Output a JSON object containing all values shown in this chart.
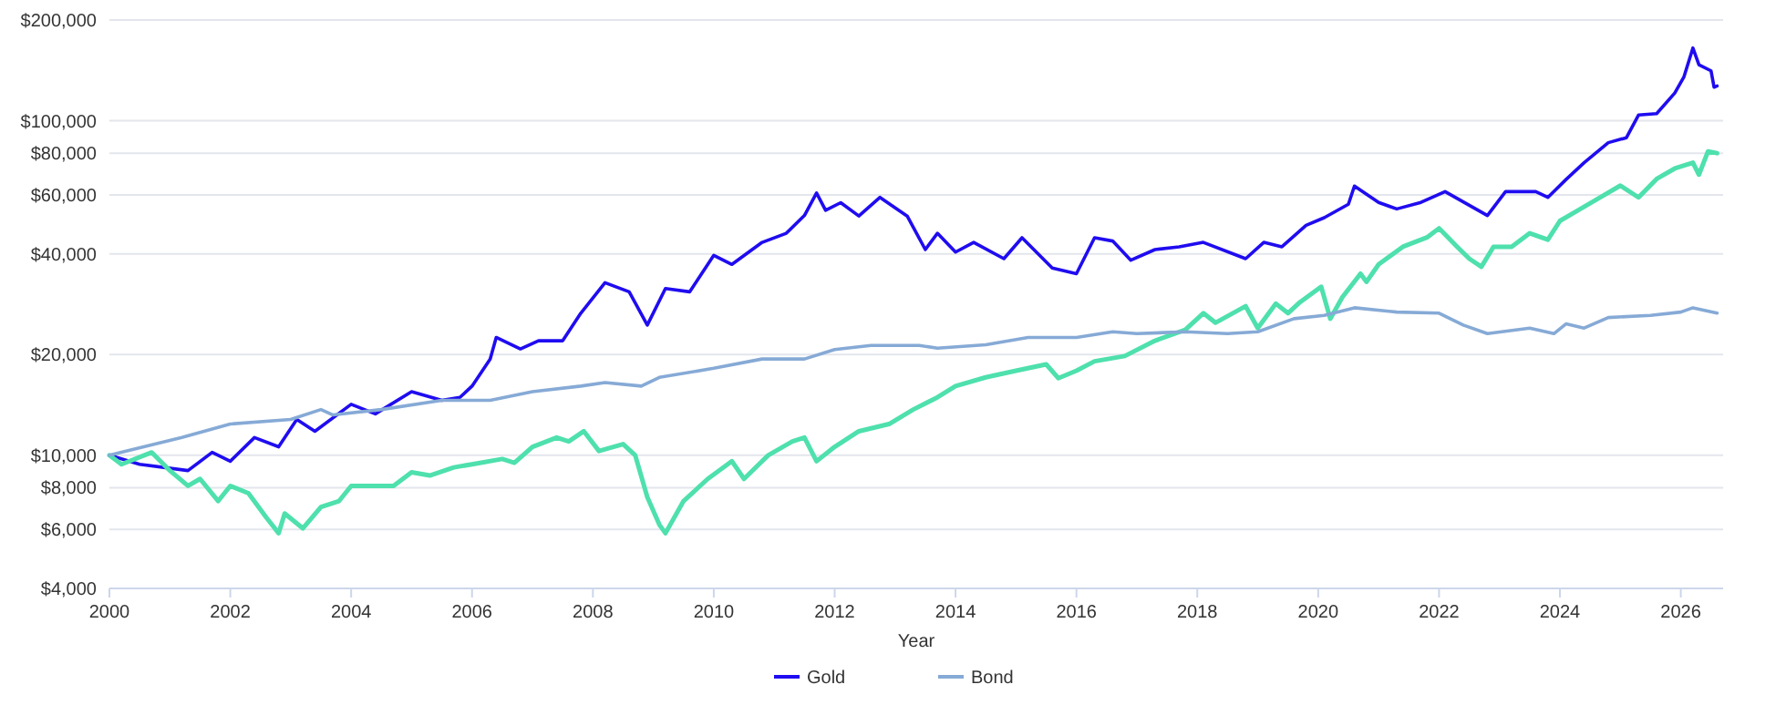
{
  "chart_data": {
    "type": "line",
    "xlabel": "Year",
    "log": "y",
    "grid": "y",
    "legend": "bottom",
    "marker": "none",
    "line_style": "solid",
    "xlim": [
      2000,
      2026.7
    ],
    "xticks": [
      2000,
      2002,
      2004,
      2006,
      2008,
      2010,
      2012,
      2014,
      2016,
      2018,
      2020,
      2022,
      2024,
      2026
    ],
    "ylim": [
      4000,
      200000
    ],
    "yticks": [
      {
        "value": 4000,
        "label": "$4,000"
      },
      {
        "value": 6000,
        "label": "$6,000"
      },
      {
        "value": 8000,
        "label": "$8,000"
      },
      {
        "value": 10000,
        "label": "$10,000"
      },
      {
        "value": 20000,
        "label": "$20,000"
      },
      {
        "value": 40000,
        "label": "$40,000"
      },
      {
        "value": 60000,
        "label": "$60,000"
      },
      {
        "value": 80000,
        "label": "$80,000"
      },
      {
        "value": 100000,
        "label": "$100,000"
      },
      {
        "value": 200000,
        "label": "$200,000"
      }
    ],
    "series": [
      {
        "name": "Gold",
        "color": "#1f0cf0",
        "x": [
          2000,
          2000.5,
          2001.3,
          2001.7,
          2002,
          2002.4,
          2002.8,
          2003.1,
          2003.4,
          2004,
          2004.4,
          2005,
          2005.5,
          2005.8,
          2006,
          2006.3,
          2006.4,
          2006.8,
          2007.1,
          2007.5,
          2007.8,
          2008.2,
          2008.6,
          2008.9,
          2009.2,
          2009.6,
          2010,
          2010.3,
          2010.8,
          2011.2,
          2011.5,
          2011.7,
          2011.85,
          2012.1,
          2012.4,
          2012.75,
          2013.2,
          2013.5,
          2013.7,
          2014,
          2014.3,
          2014.8,
          2015.1,
          2015.6,
          2016,
          2016.3,
          2016.6,
          2016.9,
          2017.3,
          2017.7,
          2018.1,
          2018.8,
          2019.1,
          2019.4,
          2019.8,
          2020.1,
          2020.5,
          2020.6,
          2021,
          2021.3,
          2021.7,
          2022.1,
          2022.8,
          2023.1,
          2023.6,
          2023.8,
          2024.1,
          2024.4,
          2024.8,
          2025.1,
          2025.3,
          2025.6,
          2025.9,
          2026.05,
          2026.2,
          2026.3,
          2026.5,
          2026.55,
          2026.6
        ],
        "values": [
          10000,
          9400,
          9000,
          10200,
          9600,
          11300,
          10600,
          12800,
          11800,
          14200,
          13300,
          15500,
          14600,
          14900,
          16100,
          19400,
          22500,
          20800,
          22000,
          22000,
          26600,
          32800,
          30800,
          24500,
          31500,
          30800,
          39600,
          37200,
          43300,
          46100,
          52100,
          60800,
          54000,
          56900,
          51900,
          59000,
          51900,
          41200,
          46100,
          40500,
          43300,
          38700,
          44700,
          36300,
          34900,
          44700,
          43700,
          38300,
          41200,
          42000,
          43300,
          38700,
          43300,
          42000,
          48700,
          51300,
          56300,
          63800,
          57000,
          54500,
          57000,
          61400,
          52100,
          61400,
          61400,
          59000,
          66700,
          74900,
          86000,
          89000,
          104000,
          105000,
          121000,
          135000,
          165000,
          147000,
          141000,
          126000,
          127000
        ]
      },
      {
        "color": "#4ee0ad",
        "x": [
          2000,
          2000.2,
          2000.7,
          2001,
          2001.3,
          2001.5,
          2001.8,
          2002,
          2002.3,
          2002.6,
          2002.8,
          2002.9,
          2003.2,
          2003.5,
          2003.8,
          2004,
          2004.3,
          2004.7,
          2005,
          2005.3,
          2005.7,
          2006,
          2006.5,
          2006.7,
          2007,
          2007.4,
          2007.6,
          2007.85,
          2008.1,
          2008.5,
          2008.7,
          2008.9,
          2009.1,
          2009.2,
          2009.5,
          2009.9,
          2010.3,
          2010.5,
          2010.9,
          2011.3,
          2011.5,
          2011.7,
          2012,
          2012.4,
          2012.9,
          2013.3,
          2013.7,
          2014,
          2014.5,
          2015,
          2015.5,
          2015.7,
          2016,
          2016.3,
          2016.8,
          2017.3,
          2017.8,
          2018.1,
          2018.3,
          2018.8,
          2019,
          2019.3,
          2019.5,
          2019.7,
          2020.05,
          2020.2,
          2020.4,
          2020.7,
          2020.8,
          2021,
          2021.4,
          2021.8,
          2022,
          2022.3,
          2022.5,
          2022.7,
          2022.9,
          2023.2,
          2023.5,
          2023.8,
          2024,
          2024.3,
          2024.7,
          2025,
          2025.3,
          2025.6,
          2025.9,
          2026.2,
          2026.3,
          2026.45,
          2026.6
        ],
        "values": [
          10000,
          9400,
          10200,
          9000,
          8100,
          8500,
          7300,
          8100,
          7700,
          6500,
          5850,
          6700,
          6050,
          7000,
          7300,
          8100,
          8100,
          8100,
          8900,
          8700,
          9200,
          9400,
          9750,
          9500,
          10600,
          11300,
          11000,
          11800,
          10300,
          10800,
          10000,
          7500,
          6200,
          5850,
          7300,
          8500,
          9600,
          8500,
          10000,
          11000,
          11300,
          9600,
          10600,
          11800,
          12400,
          13700,
          14900,
          16100,
          17100,
          17900,
          18700,
          17000,
          17900,
          19100,
          19800,
          22000,
          23700,
          26600,
          24900,
          27900,
          24000,
          28400,
          26600,
          28700,
          31900,
          25600,
          29700,
          34900,
          33000,
          37200,
          42000,
          44800,
          47700,
          42000,
          38700,
          36600,
          42000,
          42000,
          46100,
          44100,
          50200,
          54000,
          59500,
          64000,
          59000,
          67000,
          72000,
          74900,
          69000,
          81000,
          80000
        ]
      },
      {
        "name": "Bond",
        "color": "#86aad6",
        "x": [
          2000,
          2001.2,
          2002,
          2003,
          2003.5,
          2003.7,
          2004.5,
          2005.5,
          2006.3,
          2007,
          2007.8,
          2008.2,
          2008.8,
          2009.1,
          2010,
          2010.8,
          2011.5,
          2012,
          2012.6,
          2013.4,
          2013.7,
          2014.5,
          2015.2,
          2016,
          2016.6,
          2017,
          2017.8,
          2018.5,
          2019,
          2019.6,
          2020.1,
          2020.6,
          2021.3,
          2022,
          2022.4,
          2022.8,
          2023.5,
          2023.9,
          2024.1,
          2024.4,
          2024.8,
          2025.5,
          2026,
          2026.2,
          2026.6
        ],
        "values": [
          10000,
          11300,
          12400,
          12800,
          13700,
          13200,
          13700,
          14600,
          14600,
          15500,
          16100,
          16500,
          16100,
          17100,
          18200,
          19400,
          19400,
          20700,
          21300,
          21300,
          20900,
          21400,
          22500,
          22500,
          23400,
          23100,
          23400,
          23100,
          23400,
          25600,
          26200,
          27600,
          26800,
          26600,
          24500,
          23100,
          24000,
          23100,
          24700,
          24000,
          25800,
          26200,
          26800,
          27600,
          26600
        ]
      }
    ]
  }
}
